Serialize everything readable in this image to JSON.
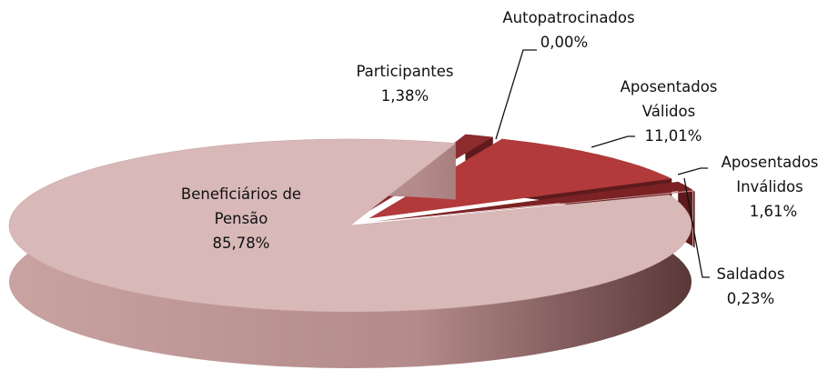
{
  "chart_data": {
    "type": "pie",
    "categories": [
      "Participantes",
      "Autopatrocinados",
      "Aposentados Válidos",
      "Aposentados Inválidos",
      "Saldados",
      "Beneficiários de Pensão"
    ],
    "values": [
      1.38,
      0.0,
      11.01,
      1.61,
      0.23,
      85.78
    ],
    "value_labels": [
      "1,38%",
      "0,00%",
      "11,01%",
      "1,61%",
      "0,23%",
      "85,78%"
    ],
    "colors": [
      "#8c2c2e",
      "#b9b2b2",
      "#b23a3a",
      "#7c2224",
      "#c98484",
      "#d9b8b8"
    ]
  }
}
